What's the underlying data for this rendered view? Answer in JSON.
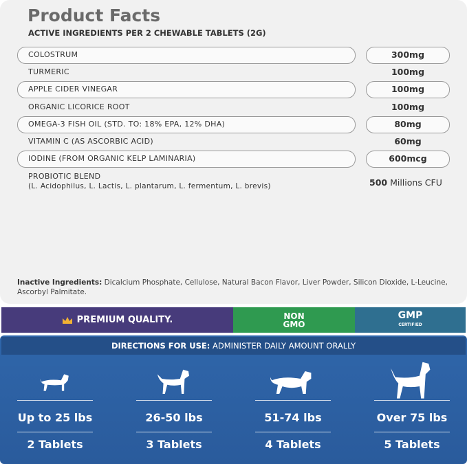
{
  "header": {
    "title": "Product Facts",
    "subtitle": "ACTIVE INGREDIENTS PER 2 CHEWABLE TABLETS (2G)"
  },
  "ingredients": [
    {
      "name": "COLOSTRUM",
      "amount": "300mg"
    },
    {
      "name": "TURMERIC",
      "amount": "100mg"
    },
    {
      "name": "APPLE CIDER VINEGAR",
      "amount": "100mg"
    },
    {
      "name": "ORGANIC LICORICE ROOT",
      "amount": "100mg"
    },
    {
      "name": "OMEGA-3 FISH OIL (STD. TO: 18% EPA, 12% DHA)",
      "amount": "80mg"
    },
    {
      "name": "VITAMIN C (AS ASCORBIC ACID)",
      "amount": "60mg"
    },
    {
      "name": "IODINE (FROM ORGANIC KELP LAMINARIA)",
      "amount": "600mcg"
    }
  ],
  "probiotic": {
    "name": "PROBIOTIC BLEND",
    "detail": "(L. Acidophilus, L. Lactis, L. plantarum, L. fermentum, L. brevis)",
    "amount": "500",
    "unit": "Millions CFU"
  },
  "inactive": {
    "label": "Inactive Ingredients:",
    "text": "Dicalcium Phosphate, Cellulose, Natural Bacon Flavor, Liver Powder, Silicon Dioxide, L-Leucine, Ascorbyl Palmitate."
  },
  "badges": {
    "premium": "PREMIUM QUALITY.",
    "non_gmo": [
      "NON",
      "GMO"
    ],
    "gmp": [
      "GMP",
      "CERTIFIED"
    ]
  },
  "directions": {
    "label": "DIRECTIONS FOR USE:",
    "text": "ADMINISTER DAILY AMOUNT ORALLY",
    "dogs": [
      {
        "weight": "Up to 25 lbs",
        "tablets": "2 Tablets"
      },
      {
        "weight": "26-50 lbs",
        "tablets": "3 Tablets"
      },
      {
        "weight": "51-74 lbs",
        "tablets": "4 Tablets"
      },
      {
        "weight": "Over 75 lbs",
        "tablets": "5 Tablets"
      }
    ]
  }
}
